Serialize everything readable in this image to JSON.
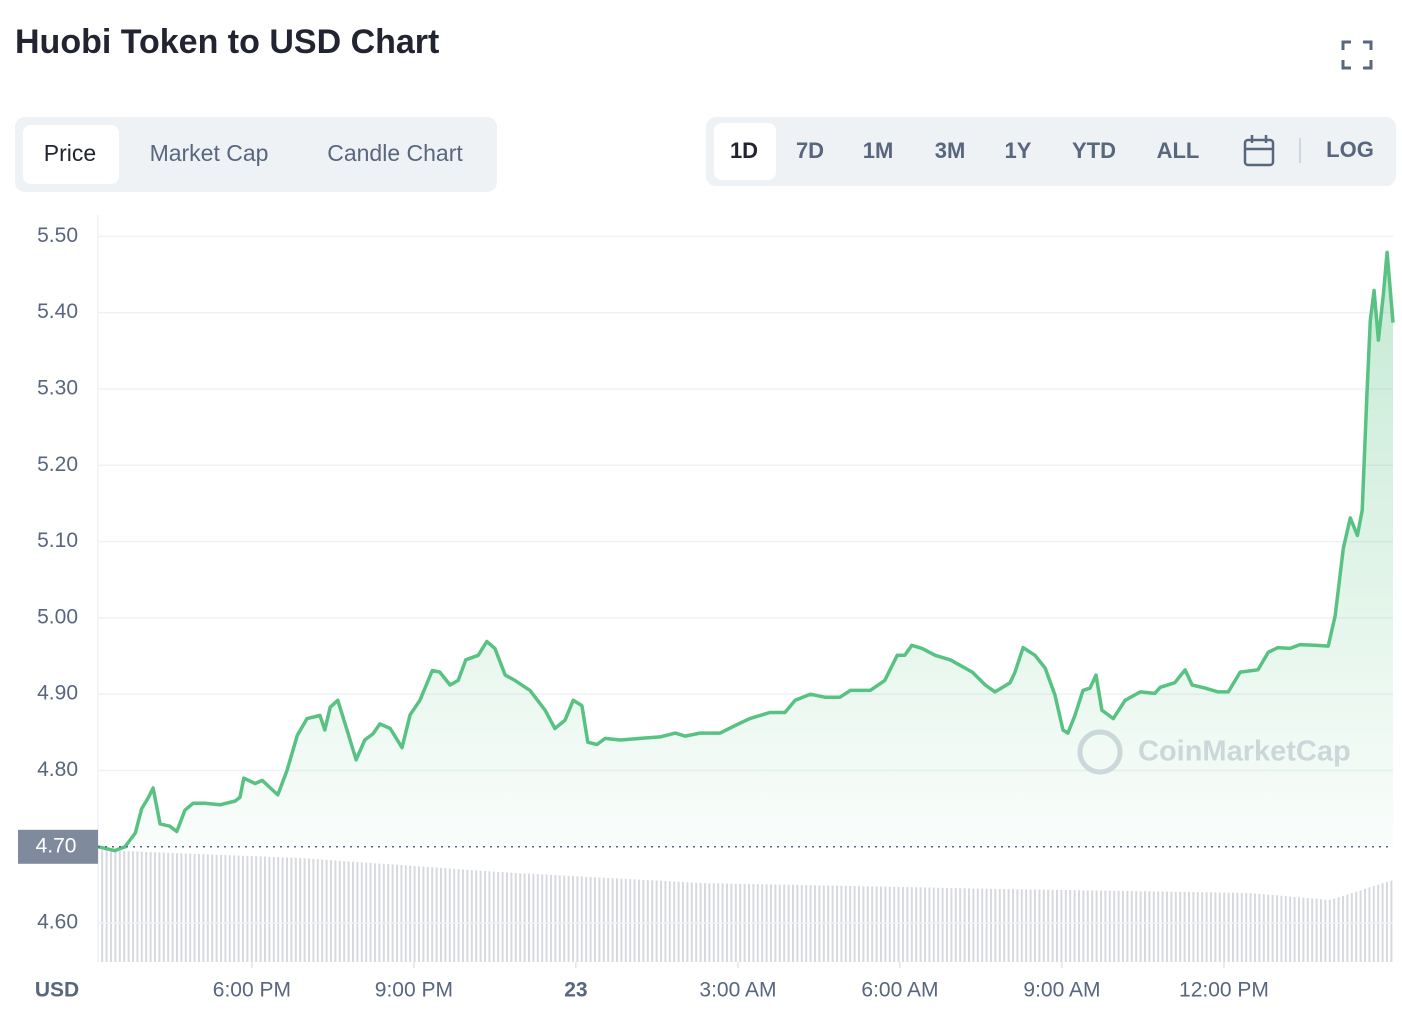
{
  "header": {
    "title": "Huobi Token to USD Chart"
  },
  "tabs": [
    "Price",
    "Market Cap",
    "Candle Chart"
  ],
  "ranges": [
    "1D",
    "7D",
    "1M",
    "3M",
    "1Y",
    "YTD",
    "ALL"
  ],
  "scale_toggle": "LOG",
  "chart_data": {
    "type": "area",
    "y_unit_label": "USD",
    "watermark": "CoinMarketCap",
    "color": "#58c282",
    "grid": true,
    "baseline": {
      "value": 4.7,
      "label": "4.70"
    },
    "xlim": [
      15.15,
      39.13
    ],
    "ylim": [
      4.549,
      5.528
    ],
    "xticks": [
      {
        "value": 18,
        "label": "6:00 PM"
      },
      {
        "value": 21,
        "label": "9:00 PM"
      },
      {
        "value": 24,
        "label": "23",
        "bold": true
      },
      {
        "value": 27,
        "label": "3:00 AM"
      },
      {
        "value": 30,
        "label": "6:00 AM"
      },
      {
        "value": 33,
        "label": "9:00 AM"
      },
      {
        "value": 36,
        "label": "12:00 PM"
      }
    ],
    "yticks": [
      {
        "value": 4.6,
        "label": "4.60"
      },
      {
        "value": 4.8,
        "label": "4.80"
      },
      {
        "value": 4.9,
        "label": "4.90"
      },
      {
        "value": 5.0,
        "label": "5.00"
      },
      {
        "value": 5.1,
        "label": "5.10"
      },
      {
        "value": 5.2,
        "label": "5.20"
      },
      {
        "value": 5.3,
        "label": "5.30"
      },
      {
        "value": 5.4,
        "label": "5.40"
      },
      {
        "value": 5.5,
        "label": "5.50"
      }
    ],
    "x": [
      15.15,
      15.46,
      15.65,
      15.84,
      15.96,
      16.08,
      16.17,
      16.3,
      16.48,
      16.61,
      16.76,
      16.91,
      17.13,
      17.41,
      17.69,
      17.78,
      17.85,
      18.06,
      18.19,
      18.48,
      18.65,
      18.84,
      19.02,
      19.26,
      19.35,
      19.45,
      19.59,
      19.76,
      19.93,
      20.09,
      20.24,
      20.37,
      20.56,
      20.78,
      20.93,
      21.11,
      21.34,
      21.48,
      21.67,
      21.82,
      21.96,
      22.19,
      22.35,
      22.5,
      22.69,
      22.87,
      23.15,
      23.43,
      23.61,
      23.8,
      23.95,
      24.11,
      24.22,
      24.39,
      24.54,
      24.82,
      25.19,
      25.56,
      25.84,
      26.02,
      26.3,
      26.67,
      26.95,
      27.22,
      27.59,
      27.87,
      28.06,
      28.34,
      28.61,
      28.89,
      29.08,
      29.45,
      29.72,
      29.95,
      30.09,
      30.22,
      30.41,
      30.65,
      30.93,
      31.11,
      31.34,
      31.58,
      31.76,
      32.04,
      32.13,
      32.28,
      32.5,
      32.69,
      32.87,
      33.02,
      33.11,
      33.24,
      33.39,
      33.52,
      33.63,
      33.74,
      33.95,
      34.17,
      34.45,
      34.72,
      34.82,
      35.09,
      35.28,
      35.41,
      35.65,
      35.89,
      36.08,
      36.3,
      36.63,
      36.82,
      37.0,
      37.22,
      37.41,
      37.69,
      37.93,
      38.06,
      38.21,
      38.34,
      38.47,
      38.56,
      38.65,
      38.71,
      38.78,
      38.86,
      38.95,
      39.02,
      39.13
    ],
    "values": [
      4.7,
      4.695,
      4.7,
      4.718,
      4.75,
      4.764,
      4.777,
      4.73,
      4.727,
      4.72,
      4.748,
      4.757,
      4.757,
      4.755,
      4.76,
      4.765,
      4.79,
      4.783,
      4.787,
      4.768,
      4.8,
      4.846,
      4.868,
      4.872,
      4.853,
      4.883,
      4.892,
      4.853,
      4.814,
      4.84,
      4.848,
      4.861,
      4.855,
      4.83,
      4.873,
      4.892,
      4.931,
      4.929,
      4.912,
      4.918,
      4.945,
      4.951,
      4.969,
      4.96,
      4.925,
      4.918,
      4.905,
      4.879,
      4.855,
      4.866,
      4.892,
      4.885,
      4.837,
      4.834,
      4.842,
      4.84,
      4.842,
      4.844,
      4.849,
      4.845,
      4.849,
      4.849,
      4.859,
      4.868,
      4.876,
      4.876,
      4.892,
      4.9,
      4.896,
      4.896,
      4.905,
      4.905,
      4.918,
      4.951,
      4.951,
      4.964,
      4.96,
      4.951,
      4.945,
      4.938,
      4.929,
      4.912,
      4.903,
      4.915,
      4.929,
      4.961,
      4.951,
      4.934,
      4.899,
      4.853,
      4.849,
      4.872,
      4.905,
      4.908,
      4.925,
      4.879,
      4.868,
      4.892,
      4.903,
      4.901,
      4.909,
      4.915,
      4.932,
      4.912,
      4.908,
      4.903,
      4.903,
      4.929,
      4.932,
      4.955,
      4.961,
      4.96,
      4.965,
      4.964,
      4.963,
      5.003,
      5.091,
      5.131,
      5.108,
      5.141,
      5.298,
      5.39,
      5.429,
      5.364,
      5.423,
      5.479,
      5.387
    ]
  }
}
